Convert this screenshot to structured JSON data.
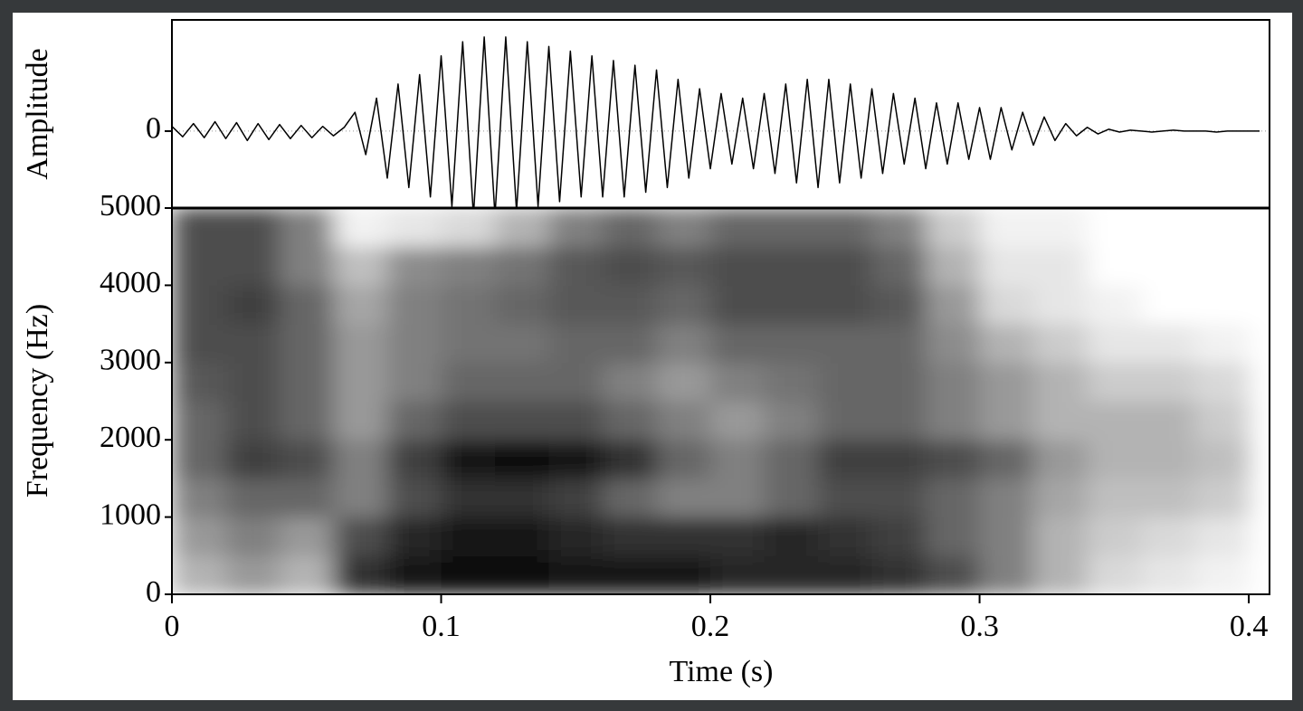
{
  "chart_data": [
    {
      "type": "line",
      "ylabel": "Amplitude",
      "color": "#000000",
      "xlim": [
        0,
        0.4077
      ],
      "ylim": [
        -0.818,
        1.182
      ],
      "yticks": [
        0
      ],
      "zero_line": true,
      "x": [
        0,
        0.004,
        0.008,
        0.012,
        0.016,
        0.02,
        0.024,
        0.028,
        0.032,
        0.036,
        0.04,
        0.044,
        0.048,
        0.052,
        0.056,
        0.06,
        0.064,
        0.068,
        0.072,
        0.076,
        0.08,
        0.084,
        0.088,
        0.092,
        0.096,
        0.1,
        0.104,
        0.108,
        0.112,
        0.116,
        0.12,
        0.124,
        0.128,
        0.132,
        0.136,
        0.14,
        0.144,
        0.148,
        0.152,
        0.156,
        0.16,
        0.164,
        0.168,
        0.172,
        0.176,
        0.18,
        0.184,
        0.188,
        0.192,
        0.196,
        0.2,
        0.204,
        0.208,
        0.212,
        0.216,
        0.22,
        0.224,
        0.228,
        0.232,
        0.236,
        0.24,
        0.244,
        0.248,
        0.252,
        0.256,
        0.26,
        0.264,
        0.268,
        0.272,
        0.276,
        0.28,
        0.284,
        0.288,
        0.292,
        0.296,
        0.3,
        0.304,
        0.308,
        0.312,
        0.316,
        0.32,
        0.324,
        0.328,
        0.332,
        0.336,
        0.34,
        0.344,
        0.348,
        0.352,
        0.356,
        0.36,
        0.364,
        0.368,
        0.372,
        0.376,
        0.38,
        0.384,
        0.388,
        0.392,
        0.396,
        0.4,
        0.404
      ],
      "values": [
        0.05,
        -0.06,
        0.08,
        -0.07,
        0.1,
        -0.08,
        0.09,
        -0.1,
        0.08,
        -0.09,
        0.07,
        -0.08,
        0.06,
        -0.07,
        0.05,
        -0.05,
        0.04,
        0.2,
        -0.25,
        0.35,
        -0.5,
        0.5,
        -0.6,
        0.6,
        -0.7,
        0.8,
        -0.8,
        0.95,
        -0.9,
        1.0,
        -0.9,
        1.0,
        -0.85,
        0.95,
        -0.8,
        0.9,
        -0.75,
        0.85,
        -0.7,
        0.8,
        -0.7,
        0.75,
        -0.7,
        0.7,
        -0.65,
        0.65,
        -0.6,
        0.55,
        -0.5,
        0.45,
        -0.4,
        0.4,
        -0.35,
        0.35,
        -0.4,
        0.4,
        -0.45,
        0.5,
        -0.55,
        0.55,
        -0.6,
        0.55,
        -0.55,
        0.5,
        -0.5,
        0.45,
        -0.45,
        0.4,
        -0.35,
        0.35,
        -0.4,
        0.3,
        -0.35,
        0.3,
        -0.3,
        0.25,
        -0.3,
        0.25,
        -0.2,
        0.2,
        -0.15,
        0.15,
        -0.1,
        0.08,
        -0.05,
        0.04,
        -0.03,
        0.02,
        -0.01,
        0.01,
        0,
        -0.01,
        0,
        0.01,
        0,
        0,
        0,
        -0.01,
        0,
        0,
        0,
        0
      ]
    },
    {
      "type": "heatmap",
      "xlabel": "Time (s)",
      "ylabel": "Frequency (Hz)",
      "xlim": [
        0,
        0.4077
      ],
      "ylim": [
        0,
        5000
      ],
      "xticks": [
        0,
        0.1,
        0.2,
        0.3,
        0.4
      ],
      "yticks": [
        0,
        1000,
        2000,
        3000,
        4000,
        5000
      ],
      "x": [
        0.01,
        0.03,
        0.05,
        0.07,
        0.09,
        0.11,
        0.13,
        0.15,
        0.17,
        0.19,
        0.21,
        0.23,
        0.25,
        0.27,
        0.29,
        0.31,
        0.33,
        0.35,
        0.37,
        0.39
      ],
      "y": [
        250,
        750,
        1250,
        1750,
        2250,
        2750,
        3250,
        3750,
        4250,
        4750
      ],
      "values": [
        [
          0.3,
          0.4,
          0.3,
          0.8,
          0.9,
          0.95,
          0.95,
          0.9,
          0.9,
          0.9,
          0.85,
          0.85,
          0.85,
          0.8,
          0.7,
          0.5,
          0.3,
          0.15,
          0.1,
          0.05
        ],
        [
          0.4,
          0.5,
          0.4,
          0.7,
          0.85,
          0.9,
          0.9,
          0.85,
          0.8,
          0.8,
          0.8,
          0.85,
          0.8,
          0.75,
          0.6,
          0.5,
          0.3,
          0.2,
          0.15,
          0.1
        ],
        [
          0.5,
          0.6,
          0.6,
          0.5,
          0.7,
          0.8,
          0.8,
          0.75,
          0.6,
          0.5,
          0.5,
          0.6,
          0.7,
          0.7,
          0.6,
          0.5,
          0.35,
          0.25,
          0.25,
          0.2
        ],
        [
          0.6,
          0.75,
          0.7,
          0.5,
          0.75,
          0.9,
          0.95,
          0.9,
          0.8,
          0.6,
          0.5,
          0.6,
          0.75,
          0.75,
          0.7,
          0.6,
          0.4,
          0.3,
          0.3,
          0.25
        ],
        [
          0.6,
          0.7,
          0.6,
          0.4,
          0.6,
          0.7,
          0.7,
          0.7,
          0.6,
          0.5,
          0.4,
          0.5,
          0.6,
          0.6,
          0.5,
          0.4,
          0.3,
          0.3,
          0.3,
          0.2
        ],
        [
          0.65,
          0.7,
          0.6,
          0.4,
          0.5,
          0.6,
          0.6,
          0.6,
          0.5,
          0.4,
          0.5,
          0.55,
          0.6,
          0.6,
          0.5,
          0.4,
          0.3,
          0.2,
          0.2,
          0.15
        ],
        [
          0.7,
          0.7,
          0.6,
          0.4,
          0.5,
          0.55,
          0.55,
          0.6,
          0.6,
          0.5,
          0.6,
          0.6,
          0.6,
          0.6,
          0.45,
          0.3,
          0.2,
          0.1,
          0.1,
          0.05
        ],
        [
          0.7,
          0.75,
          0.6,
          0.35,
          0.5,
          0.55,
          0.6,
          0.65,
          0.65,
          0.6,
          0.7,
          0.7,
          0.7,
          0.65,
          0.4,
          0.15,
          0.1,
          0.05,
          0,
          0
        ],
        [
          0.7,
          0.7,
          0.5,
          0.25,
          0.45,
          0.5,
          0.55,
          0.65,
          0.7,
          0.65,
          0.7,
          0.7,
          0.7,
          0.6,
          0.3,
          0.1,
          0.1,
          0,
          0,
          0
        ],
        [
          0.7,
          0.7,
          0.5,
          0.05,
          0.1,
          0.15,
          0.3,
          0.5,
          0.6,
          0.5,
          0.6,
          0.6,
          0.6,
          0.5,
          0.2,
          0.05,
          0.05,
          0,
          0,
          0
        ]
      ]
    }
  ]
}
